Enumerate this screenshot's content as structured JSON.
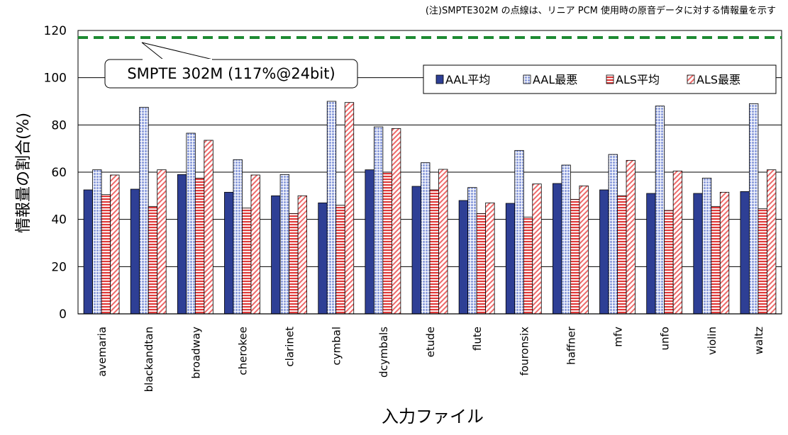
{
  "chart_data": {
    "type": "bar",
    "note": "(注)SMPTE302M の点線は、リニア PCM 使用時の原音データに対する情報量を示す",
    "xlabel": "入力ファイル",
    "ylabel": "情報量の割合(%)",
    "ylim": [
      0,
      120
    ],
    "yticks": [
      "0",
      "20",
      "40",
      "60",
      "80",
      "100",
      "120"
    ],
    "grid": true,
    "legend_position": "top-right",
    "categories": [
      "avemaria",
      "blackandtan",
      "broadway",
      "cherokee",
      "clarinet",
      "cymbal",
      "dcymbals",
      "etude",
      "flute",
      "fouronsix",
      "haffner",
      "mfv",
      "unfo",
      "violin",
      "waltz"
    ],
    "series": [
      {
        "name": "AAL平均",
        "color": "#2e3f95",
        "values": [
          52.5,
          52.8,
          59,
          51.5,
          50,
          47,
          61,
          54,
          48,
          46.8,
          55.2,
          52.5,
          51,
          51,
          51.8
        ]
      },
      {
        "name": "AAL最悪",
        "color": "#a9b6e6",
        "values": [
          61,
          87.5,
          76.5,
          65.3,
          59,
          90,
          79.2,
          64,
          53.5,
          69.2,
          63,
          67.5,
          88,
          57.5,
          89
        ]
      },
      {
        "name": "ALS平均",
        "color": "#e43d3d",
        "values": [
          50.5,
          45.5,
          57.5,
          44.8,
          42.5,
          46,
          60,
          52.5,
          42.5,
          41,
          48.5,
          50,
          43.8,
          45.5,
          44.5
        ]
      },
      {
        "name": "ALS最悪",
        "color": "#f07a7a",
        "values": [
          58.8,
          61,
          73.5,
          58.8,
          50,
          89.5,
          78.5,
          61.2,
          47,
          55,
          54.2,
          65,
          60.5,
          51.5,
          61
        ]
      }
    ],
    "reference_line": {
      "value": 117,
      "color": "#1e8a32",
      "style": "dashed"
    },
    "annotation": "SMPTE 302M (117%@24bit)"
  }
}
